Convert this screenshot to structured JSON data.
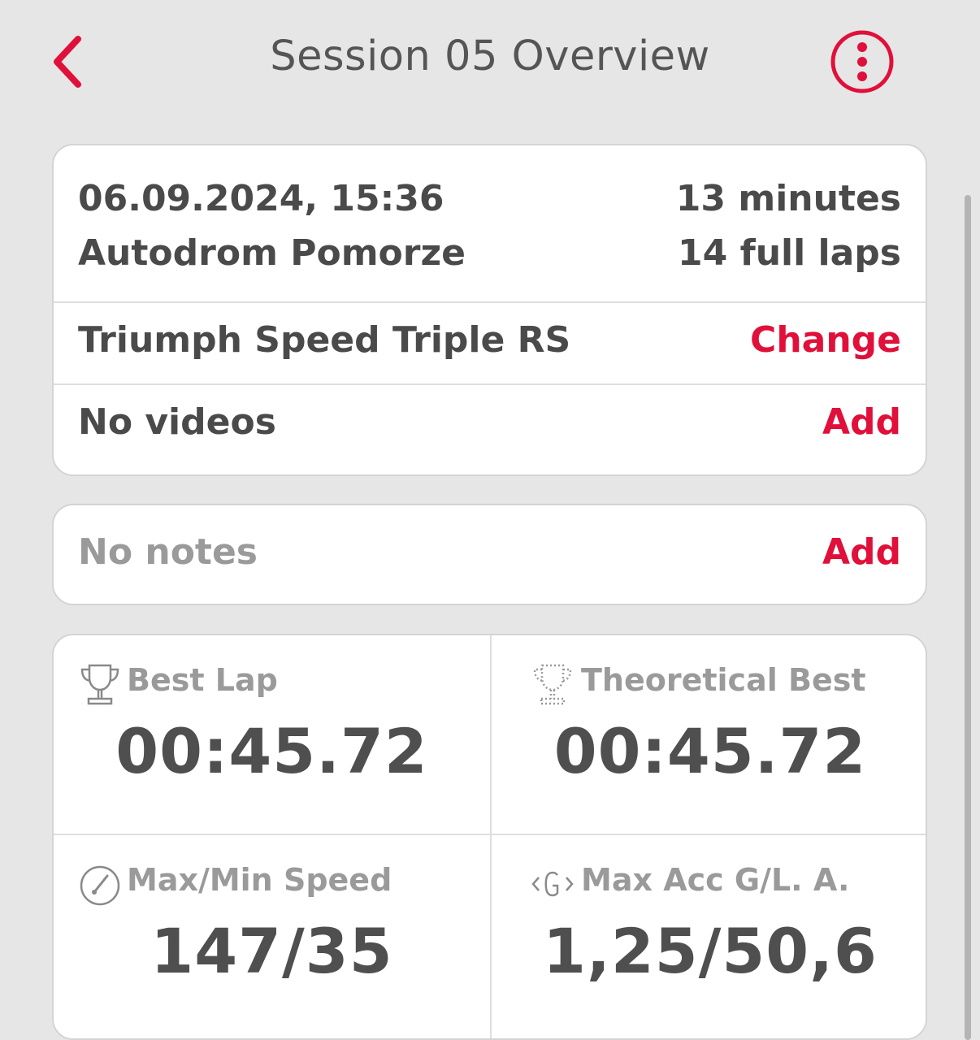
{
  "header": {
    "title": "Session 05 Overview",
    "back_icon": "chevron-left-icon",
    "more_icon": "more-vertical-icon",
    "accent_color": "#e0103a"
  },
  "session": {
    "datetime": "06.09.2024, 15:36",
    "track": "Autodrom Pomorze",
    "duration": "13 minutes",
    "laps": "14 full laps",
    "bike": "Triumph Speed Triple RS",
    "change_label": "Change",
    "videos_text": "No videos",
    "videos_add_label": "Add"
  },
  "notes": {
    "text": "No notes",
    "add_label": "Add"
  },
  "stats": {
    "best_lap": {
      "label": "Best Lap",
      "value": "00:45.72",
      "icon": "trophy-icon"
    },
    "theoretical_best": {
      "label": "Theoretical Best",
      "value": "00:45.72",
      "icon": "dotted-trophy-icon"
    },
    "speed": {
      "label": "Max/Min Speed",
      "value": "147/35",
      "icon": "speedometer-icon"
    },
    "acceleration": {
      "label": "Max Acc G/L. A.",
      "value": "1,25/50,6",
      "icon": "g-force-icon"
    }
  }
}
